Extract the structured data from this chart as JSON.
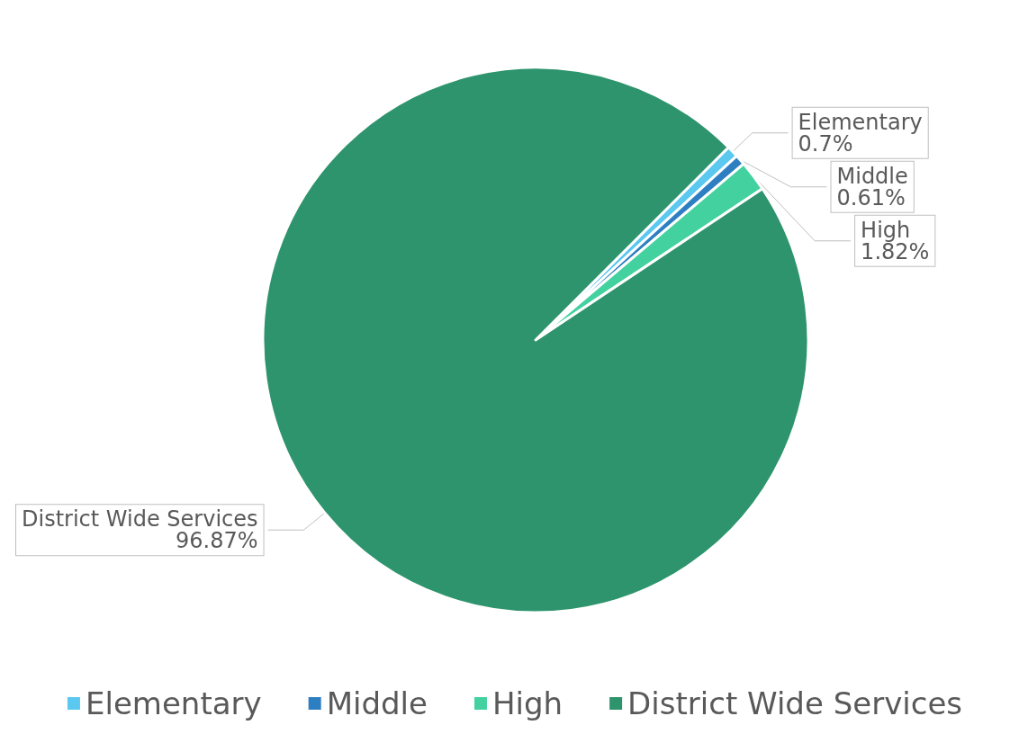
{
  "chart_data": {
    "type": "pie",
    "categories": [
      "Elementary",
      "Middle",
      "High",
      "District Wide Services"
    ],
    "values": [
      0.7,
      0.61,
      1.82,
      96.87
    ],
    "colors": [
      "#5bc8f0",
      "#2e7fc2",
      "#44d1a0",
      "#2e946d"
    ],
    "value_labels": [
      "0.7%",
      "0.61%",
      "1.82%",
      "96.87%"
    ],
    "legend": "bottom"
  }
}
